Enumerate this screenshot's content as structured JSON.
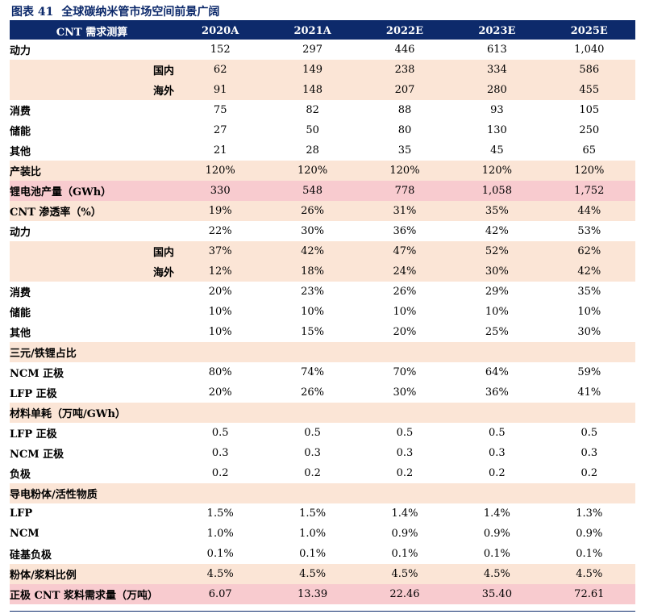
{
  "title": {
    "figure_no": "图表 41",
    "text": "全球碳纳米管市场空间前景广阔"
  },
  "table": {
    "header": [
      "CNT 需求测算",
      "2020A",
      "2021A",
      "2022E",
      "2023E",
      "2025E"
    ],
    "rows": [
      {
        "label": "动力",
        "values": [
          "152",
          "297",
          "446",
          "613",
          "1,040"
        ],
        "indent": false,
        "style": "plain",
        "h": 25
      },
      {
        "label": "国内",
        "values": [
          "62",
          "149",
          "238",
          "334",
          "586"
        ],
        "indent": true,
        "style": "peach",
        "h": 25
      },
      {
        "label": "海外",
        "values": [
          "91",
          "148",
          "207",
          "280",
          "455"
        ],
        "indent": true,
        "style": "peach",
        "h": 25
      },
      {
        "label": "消费",
        "values": [
          "75",
          "82",
          "88",
          "93",
          "105"
        ],
        "indent": false,
        "style": "plain",
        "h": 25
      },
      {
        "label": "储能",
        "values": [
          "27",
          "50",
          "80",
          "130",
          "250"
        ],
        "indent": false,
        "style": "plain",
        "h": 25
      },
      {
        "label": "其他",
        "values": [
          "21",
          "28",
          "35",
          "45",
          "65"
        ],
        "indent": false,
        "style": "plain",
        "h": 25
      },
      {
        "label": "产装比",
        "values": [
          "120%",
          "120%",
          "120%",
          "120%",
          "120%"
        ],
        "indent": false,
        "style": "peach",
        "h": 25
      },
      {
        "label": "锂电池产量（GWh）",
        "values": [
          "330",
          "548",
          "778",
          "1,058",
          "1,752"
        ],
        "indent": false,
        "style": "pink",
        "h": 25
      },
      {
        "label": "CNT 渗透率（%）",
        "values": [
          "19%",
          "26%",
          "31%",
          "35%",
          "44%"
        ],
        "indent": false,
        "style": "peach",
        "h": 25
      },
      {
        "label": "动力",
        "values": [
          "22%",
          "30%",
          "36%",
          "42%",
          "53%"
        ],
        "indent": false,
        "style": "plain",
        "h": 25
      },
      {
        "label": "国内",
        "values": [
          "37%",
          "42%",
          "47%",
          "52%",
          "62%"
        ],
        "indent": true,
        "style": "peach",
        "h": 25
      },
      {
        "label": "海外",
        "values": [
          "12%",
          "18%",
          "24%",
          "30%",
          "42%"
        ],
        "indent": true,
        "style": "peach",
        "h": 25
      },
      {
        "label": "消费",
        "values": [
          "20%",
          "23%",
          "26%",
          "29%",
          "35%"
        ],
        "indent": false,
        "style": "plain",
        "h": 25
      },
      {
        "label": "储能",
        "values": [
          "10%",
          "10%",
          "10%",
          "10%",
          "10%"
        ],
        "indent": false,
        "style": "plain",
        "h": 25
      },
      {
        "label": "其他",
        "values": [
          "10%",
          "15%",
          "20%",
          "25%",
          "30%"
        ],
        "indent": false,
        "style": "plain",
        "h": 25
      },
      {
        "label": "三元/铁锂占比",
        "values": [
          "",
          "",
          "",
          "",
          ""
        ],
        "indent": false,
        "style": "peach",
        "h": 25
      },
      {
        "label": "NCM 正极",
        "values": [
          "80%",
          "74%",
          "70%",
          "64%",
          "59%"
        ],
        "indent": false,
        "style": "plain",
        "h": 25
      },
      {
        "label": "LFP 正极",
        "values": [
          "20%",
          "26%",
          "30%",
          "36%",
          "41%"
        ],
        "indent": false,
        "style": "plain",
        "h": 25
      },
      {
        "label": "材料单耗（万吨/GWh）",
        "values": [
          "",
          "",
          "",
          "",
          ""
        ],
        "indent": false,
        "style": "peach",
        "h": 25
      },
      {
        "label": "LFP 正极",
        "values": [
          "0.5",
          "0.5",
          "0.5",
          "0.5",
          "0.5"
        ],
        "indent": false,
        "style": "plain",
        "h": 25
      },
      {
        "label": "NCM 正极",
        "values": [
          "0.3",
          "0.3",
          "0.3",
          "0.3",
          "0.3"
        ],
        "indent": false,
        "style": "plain",
        "h": 25
      },
      {
        "label": "负极",
        "values": [
          "0.2",
          "0.2",
          "0.2",
          "0.2",
          "0.2"
        ],
        "indent": false,
        "style": "plain",
        "h": 25
      },
      {
        "label": "导电粉体/活性物质",
        "values": [
          "",
          "",
          "",
          "",
          ""
        ],
        "indent": false,
        "style": "peach",
        "h": 25
      },
      {
        "label": "LFP",
        "values": [
          "1.5%",
          "1.5%",
          "1.4%",
          "1.4%",
          "1.3%"
        ],
        "indent": false,
        "style": "plain",
        "h": 25
      },
      {
        "label": "NCM",
        "values": [
          "1.0%",
          "1.0%",
          "0.9%",
          "0.9%",
          "0.9%"
        ],
        "indent": false,
        "style": "plain",
        "h": 25
      },
      {
        "label": "硅基负极",
        "values": [
          "0.1%",
          "0.1%",
          "0.1%",
          "0.1%",
          "0.1%"
        ],
        "indent": false,
        "style": "plain",
        "h": 25
      },
      {
        "label": "粉体/浆料比例",
        "values": [
          "4.5%",
          "4.5%",
          "4.5%",
          "4.5%",
          "4.5%"
        ],
        "indent": false,
        "style": "peach",
        "h": 25
      },
      {
        "label": "正极 CNT 浆料需求量（万吨）",
        "values": [
          "6.07",
          "13.39",
          "22.46",
          "35.40",
          "72.61"
        ],
        "indent": false,
        "style": "pink",
        "h": 25
      }
    ]
  },
  "colors": {
    "navy": "#0d2a6b",
    "peach": "#fbe5d6",
    "pink": "#f8cbcf"
  }
}
